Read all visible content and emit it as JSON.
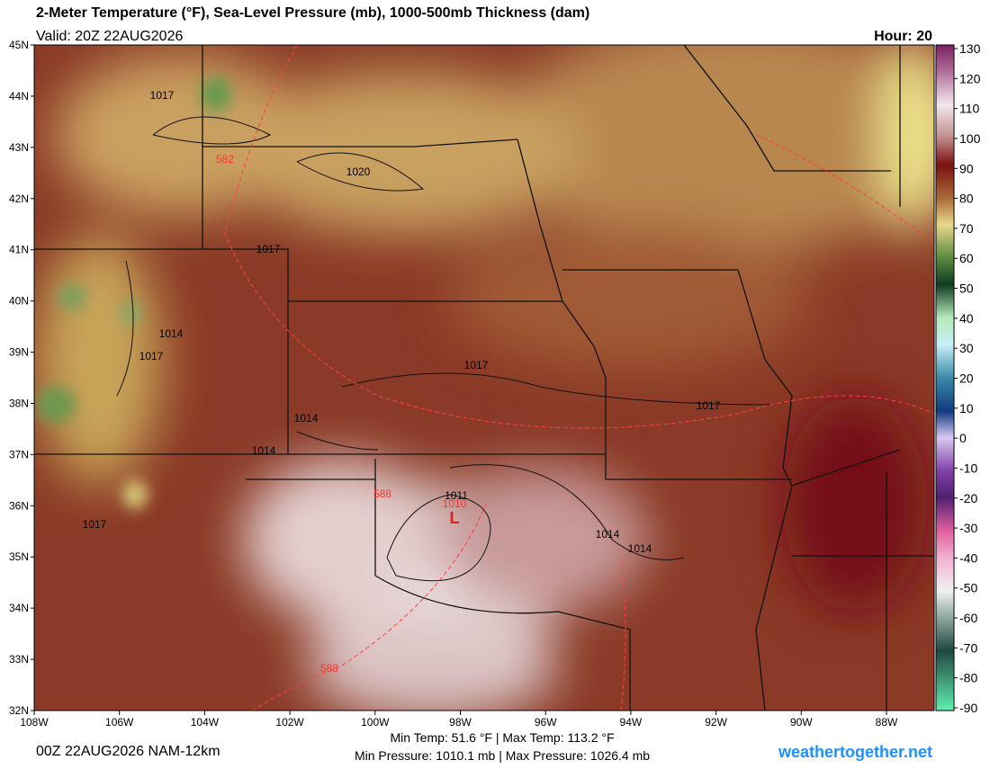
{
  "header": {
    "title": "2-Meter Temperature (°F), Sea-Level Pressure (mb), 1000-500mb Thickness (dam)",
    "valid": "Valid: 20Z 22AUG2026",
    "hour": "Hour: 20"
  },
  "map": {
    "lat_ticks": [
      {
        "value": 45,
        "label": "45N"
      },
      {
        "value": 44,
        "label": "44N"
      },
      {
        "value": 43,
        "label": "43N"
      },
      {
        "value": 42,
        "label": "42N"
      },
      {
        "value": 41,
        "label": "41N"
      },
      {
        "value": 40,
        "label": "40N"
      },
      {
        "value": 39,
        "label": "39N"
      },
      {
        "value": 38,
        "label": "38N"
      },
      {
        "value": 37,
        "label": "37N"
      },
      {
        "value": 36,
        "label": "36N"
      },
      {
        "value": 35,
        "label": "35N"
      },
      {
        "value": 34,
        "label": "34N"
      },
      {
        "value": 33,
        "label": "33N"
      },
      {
        "value": 32,
        "label": "32N"
      }
    ],
    "lon_ticks": [
      {
        "value": -108,
        "label": "108W"
      },
      {
        "value": -106,
        "label": "106W"
      },
      {
        "value": -104,
        "label": "104W"
      },
      {
        "value": -102,
        "label": "102W"
      },
      {
        "value": -100,
        "label": "100W"
      },
      {
        "value": -98,
        "label": "98W"
      },
      {
        "value": -96,
        "label": "96W"
      },
      {
        "value": -94,
        "label": "94W"
      },
      {
        "value": -92,
        "label": "92W"
      },
      {
        "value": -90,
        "label": "90W"
      },
      {
        "value": -88,
        "label": "88W"
      }
    ],
    "pressure_labels": [
      "1017",
      "1020",
      "1017",
      "1014",
      "1017",
      "1017",
      "1017",
      "1014",
      "1014",
      "1017",
      "1014",
      "1014",
      "1011",
      "1010"
    ],
    "thickness_labels": [
      "582",
      "588",
      "588"
    ],
    "low_label": "L"
  },
  "colorbar": {
    "ticks": [
      130,
      120,
      110,
      100,
      90,
      80,
      70,
      60,
      50,
      40,
      30,
      20,
      10,
      0,
      -10,
      -20,
      -30,
      -40,
      -50,
      -60,
      -70,
      -80,
      -90
    ]
  },
  "footer": {
    "run": "00Z 22AUG2026 NAM-12km",
    "temps": "Min Temp:  51.6 °F | Max Temp: 113.2 °F",
    "pressures": "Min Pressure: 1010.1 mb | Max Pressure: 1026.4 mb",
    "site": "weathertogether.net"
  }
}
